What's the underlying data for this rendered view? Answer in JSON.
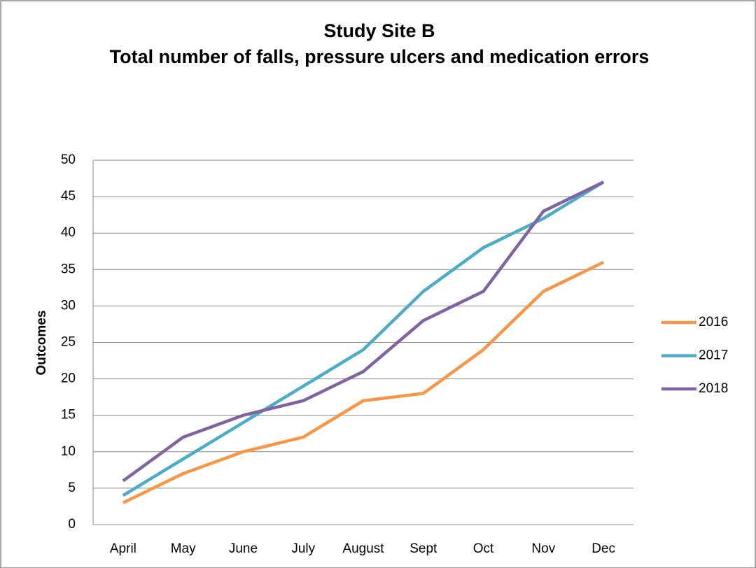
{
  "chart_data": {
    "type": "line",
    "title": "Study Site B",
    "subtitle": "Total number of falls, pressure ulcers and medication errors",
    "y_label": "Outcomes",
    "categories": [
      "April",
      "May",
      "June",
      "July",
      "August",
      "Sept",
      "Oct",
      "Nov",
      "Dec"
    ],
    "series": [
      {
        "name": "2016",
        "color": "#f79646",
        "values": [
          3,
          7,
          10,
          12,
          17,
          18,
          24,
          32,
          36
        ]
      },
      {
        "name": "2017",
        "color": "#4bacc6",
        "values": [
          4,
          9,
          14,
          19,
          24,
          32,
          38,
          42,
          47
        ]
      },
      {
        "name": "2018",
        "color": "#8064a2",
        "values": [
          6,
          12,
          15,
          17,
          21,
          28,
          32,
          43,
          47
        ]
      }
    ],
    "ylim": [
      0,
      50
    ],
    "yticks": [
      0,
      5,
      10,
      15,
      20,
      25,
      30,
      35,
      40,
      45,
      50
    ],
    "grid": true,
    "legend": "right"
  }
}
